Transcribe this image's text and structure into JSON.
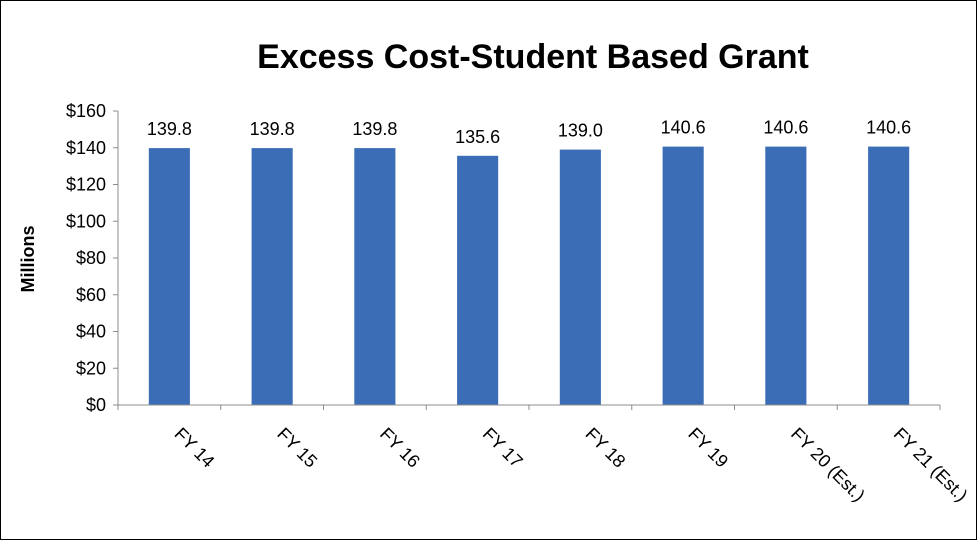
{
  "chart_data": {
    "type": "bar",
    "title": "Excess Cost-Student Based Grant",
    "xlabel": "",
    "ylabel": "Millions",
    "categories": [
      "FY 14",
      "FY 15",
      "FY 16",
      "FY 17",
      "FY 18",
      "FY 19",
      "FY 20 (Est.)",
      "FY 21 (Est.)"
    ],
    "values": [
      139.8,
      139.8,
      139.8,
      135.6,
      139.0,
      140.6,
      140.6,
      140.6
    ],
    "data_labels": [
      "139.8",
      "139.8",
      "139.8",
      "135.6",
      "139.0",
      "140.6",
      "140.6",
      "140.6"
    ],
    "ylim": [
      0,
      160
    ],
    "yticks": [
      0,
      20,
      40,
      60,
      80,
      100,
      120,
      140,
      160
    ],
    "ytick_labels": [
      "$0",
      "$20",
      "$40",
      "$60",
      "$80",
      "$100",
      "$120",
      "$140",
      "$160"
    ],
    "grid": false,
    "legend": "none",
    "bar_color": "#3A6DB5"
  }
}
